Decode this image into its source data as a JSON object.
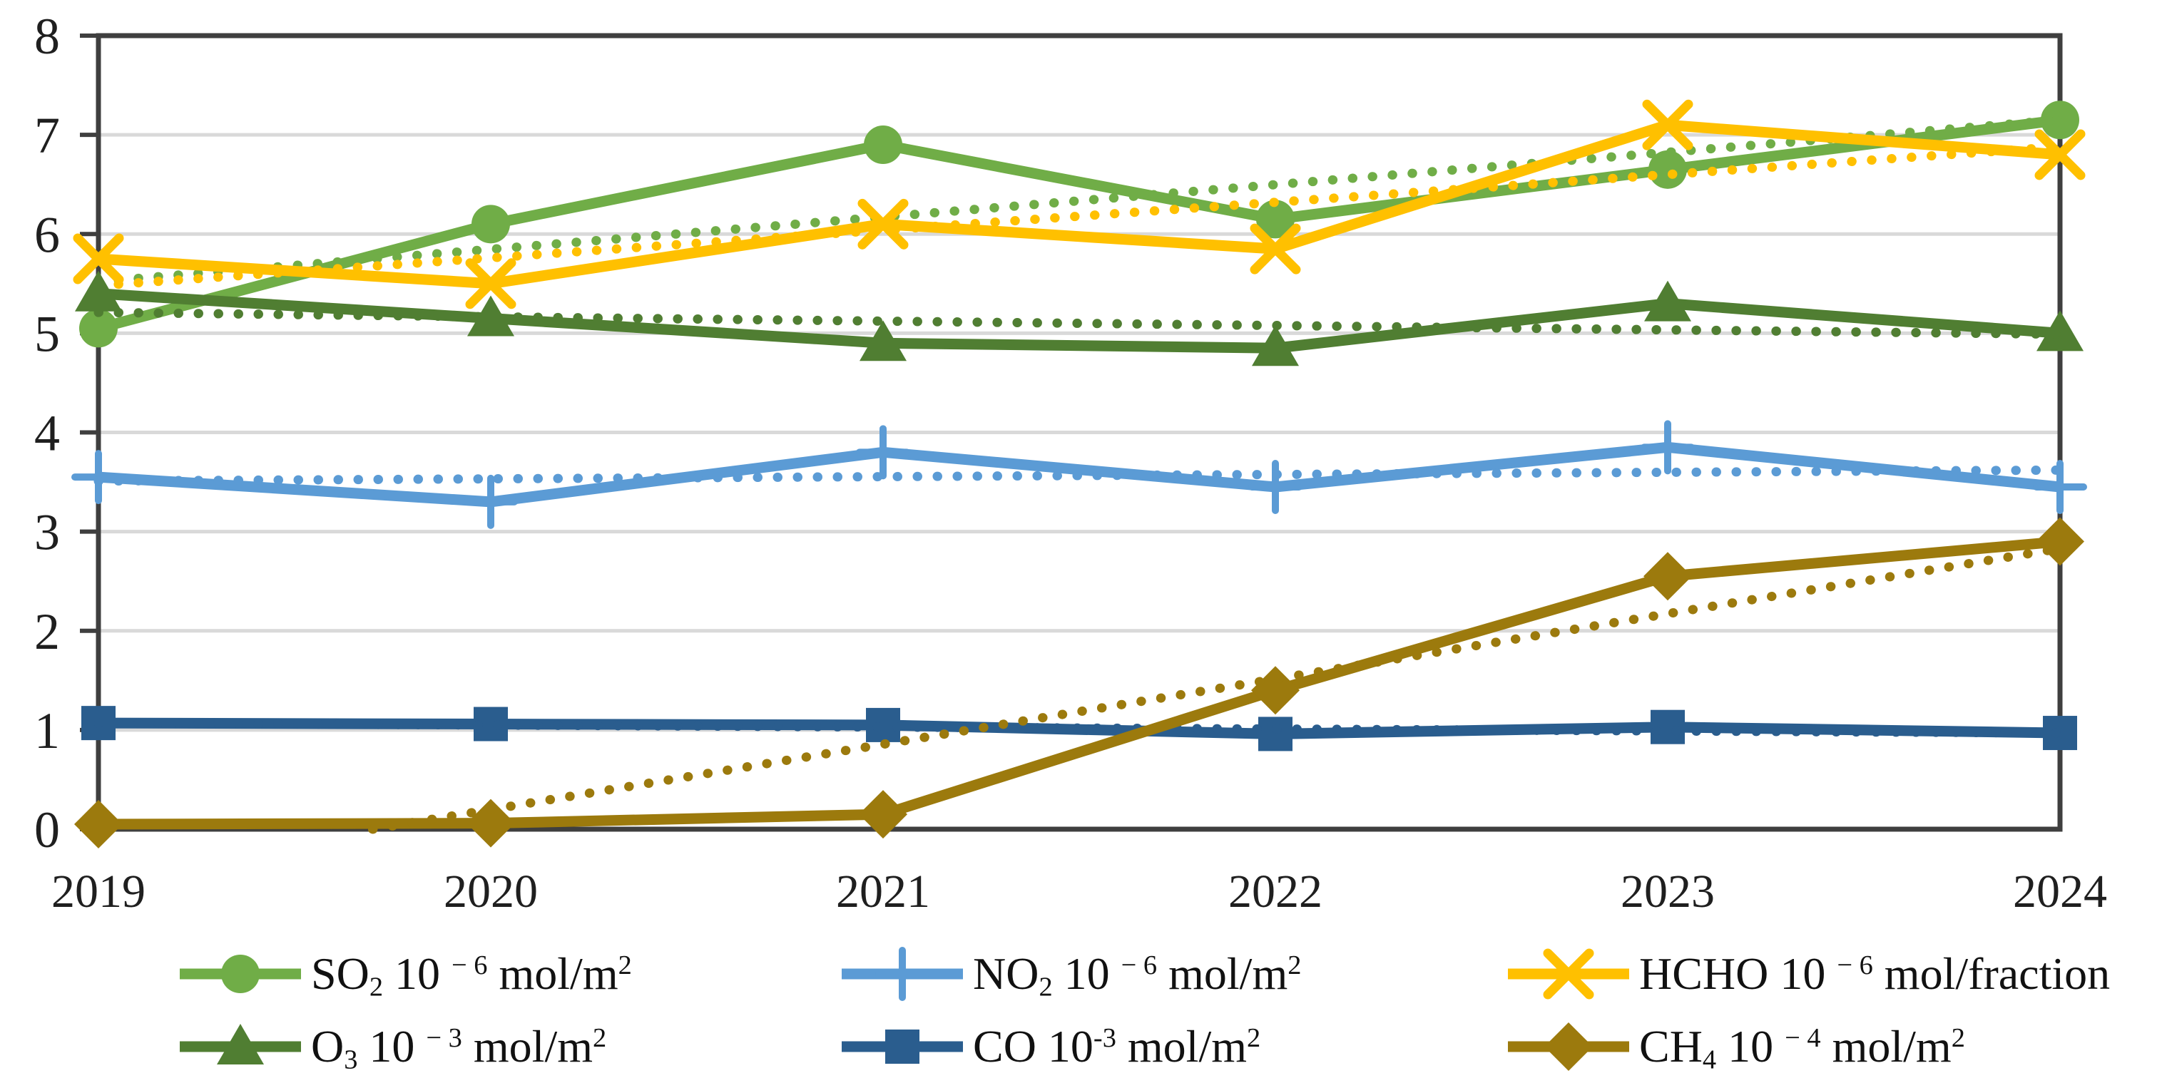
{
  "chart_data": {
    "type": "line",
    "x": [
      "2019",
      "2020",
      "2021",
      "2022",
      "2023",
      "2024"
    ],
    "ylim": [
      0,
      8
    ],
    "yticks": [
      0,
      1,
      2,
      3,
      4,
      5,
      6,
      7,
      8
    ],
    "grid": true,
    "legend_position": "bottom",
    "axis_color": "#3f3f3f",
    "grid_color": "#d9d9d9",
    "tick_label_color": "#1f1f1f",
    "series": [
      {
        "id": "so2",
        "name": "SO2 10^-6 mol/m^2",
        "marker": "circle",
        "color": "#70AD47",
        "values": [
          5.05,
          6.1,
          6.9,
          6.15,
          6.65,
          7.15
        ],
        "trend": {
          "style": "dotted",
          "start": 5.52,
          "end": 7.15
        }
      },
      {
        "id": "no2",
        "name": "NO2 10^-6 mol/m^2",
        "marker": "plus",
        "color": "#5B9BD5",
        "values": [
          3.55,
          3.3,
          3.8,
          3.45,
          3.85,
          3.45
        ],
        "trend": {
          "style": "dotted",
          "start": 3.51,
          "end": 3.62
        }
      },
      {
        "id": "hcho",
        "name": "HCHO 10^-6 mol/fraction",
        "marker": "x",
        "color": "#FFC000",
        "values": [
          5.75,
          5.5,
          6.1,
          5.85,
          7.1,
          6.8
        ],
        "trend": {
          "style": "dotted",
          "start": 5.48,
          "end": 6.88
        }
      },
      {
        "id": "o3",
        "name": "O3 10^-3 mol/m^2",
        "marker": "triangle",
        "color": "#507E32",
        "values": [
          5.4,
          5.15,
          4.9,
          4.85,
          5.3,
          5.0
        ],
        "trend": {
          "style": "dotted",
          "start": 5.21,
          "end": 4.99
        }
      },
      {
        "id": "co",
        "name": "CO 10^-3 mol/m^2",
        "marker": "square",
        "color": "#2A5D8E",
        "values": [
          1.07,
          1.06,
          1.05,
          0.96,
          1.03,
          0.97
        ],
        "trend": {
          "style": "dotted",
          "start": 1.07,
          "end": 0.97
        }
      },
      {
        "id": "ch4",
        "name": "CH4 10^-4 mol/m^2",
        "marker": "diamond",
        "color": "#9C7A0D",
        "values": [
          0.05,
          0.06,
          0.15,
          1.4,
          2.55,
          2.9
        ],
        "trend": {
          "style": "dotted",
          "start": -0.46,
          "end": 2.83
        }
      }
    ]
  },
  "legend": {
    "rows": [
      {
        "items": [
          {
            "series": "so2",
            "segments": [
              {
                "t": "SO"
              },
              {
                "v": "sub",
                "t": "2"
              },
              {
                "t": "  10 "
              },
              {
                "v": "sup",
                "t": "− 6"
              },
              {
                "t": " mol/m"
              },
              {
                "v": "sup",
                "t": "2"
              }
            ]
          },
          {
            "series": "no2",
            "segments": [
              {
                "t": "NO"
              },
              {
                "v": "sub",
                "t": "2"
              },
              {
                "t": "  10 "
              },
              {
                "v": "sup",
                "t": "− 6"
              },
              {
                "t": " mol/m"
              },
              {
                "v": "sup",
                "t": "2"
              }
            ]
          },
          {
            "series": "hcho",
            "segments": [
              {
                "t": "HCHO 10 "
              },
              {
                "v": "sup",
                "t": "− 6"
              },
              {
                "t": " mol/fraction"
              }
            ]
          }
        ]
      },
      {
        "items": [
          {
            "series": "o3",
            "segments": [
              {
                "t": "O"
              },
              {
                "v": "sub",
                "t": "3"
              },
              {
                "t": "   10 "
              },
              {
                "v": "sup",
                "t": "− 3"
              },
              {
                "t": " mol/m"
              },
              {
                "v": "sup",
                "t": "2"
              }
            ]
          },
          {
            "series": "co",
            "segments": [
              {
                "t": "CO"
              },
              {
                "t": "   10"
              },
              {
                "v": "sup",
                "t": "-3"
              },
              {
                "t": " mol/m"
              },
              {
                "v": "sup",
                "t": "2"
              }
            ]
          },
          {
            "series": "ch4",
            "segments": [
              {
                "t": "CH"
              },
              {
                "v": "sub",
                "t": "4"
              },
              {
                "t": "   10 "
              },
              {
                "v": "sup",
                "t": "− 4"
              },
              {
                "t": " mol/m"
              },
              {
                "v": "sup",
                "t": "2"
              }
            ]
          }
        ]
      }
    ]
  }
}
